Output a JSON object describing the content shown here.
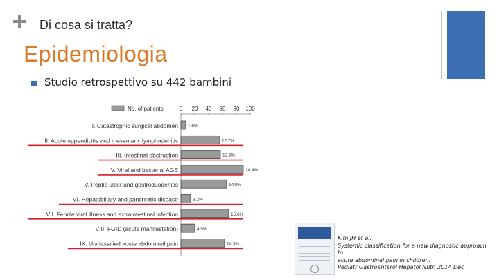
{
  "header": {
    "section_title": "Di cosa si tratta?"
  },
  "slide": {
    "heading": "Epidemiologia",
    "bullet": "Studio retrospettivo su 442 bambini"
  },
  "colors": {
    "accent_orange": "#d97a28",
    "accent_blue": "#3c6eb4",
    "bar_gray": "#9a9a9a",
    "underline_red": "#d4202a"
  },
  "chart_data": {
    "type": "bar",
    "legend": "No. of patients",
    "x_ticks": [
      "0",
      "20",
      "40",
      "60",
      "80",
      "100"
    ],
    "xlim": [
      0,
      100
    ],
    "categories": [
      "I. Catastrophic surgical abdomen",
      "II. Acute appendicitis and mesenteric lymphadenitis",
      "III. Intestinal obstruction",
      "IV. Viral and bacterial AGE",
      "V. Peptic ulcer and gastroduodenitis",
      "VI. Hepatobiliary and pancreatic disease",
      "VII. Febrile viral illness and extraintestinal infection",
      "VIII. FGID (acute manifestation)",
      "IX. Unclassified acute abdominal pain"
    ],
    "values": [
      7,
      56,
      57,
      90,
      66,
      14,
      69,
      20,
      63
    ],
    "data_labels": [
      "1.6%",
      "12.7%",
      "12.9%",
      "20.4%",
      "14.9%",
      "3.2%",
      "15.6%",
      "4.5%",
      "14.3%"
    ],
    "underlined": [
      false,
      true,
      true,
      true,
      false,
      true,
      true,
      false,
      true
    ]
  },
  "citation": {
    "lines": [
      "Kim JH et al.",
      "Systemic classification for a new diagnostic approach",
      "to",
      "acute abdominal pain in children.",
      "Pediatr Gastroenterol Hepatol Nutr. 2014 Dec"
    ]
  }
}
